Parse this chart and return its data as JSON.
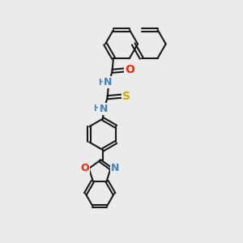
{
  "bg_color": "#ebebeb",
  "bond_color": "#1a1a1a",
  "bond_width": 1.5,
  "atom_colors": {
    "N": "#4682B4",
    "O": "#FF2200",
    "S": "#CCAA00",
    "H": "#4682B4"
  },
  "font_size": 8,
  "figsize": [
    3.0,
    3.0
  ],
  "dpi": 100
}
